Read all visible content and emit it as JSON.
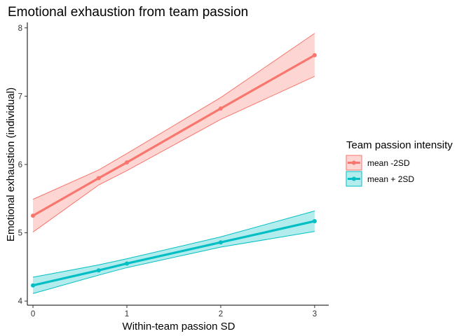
{
  "chart_data": {
    "type": "line",
    "title": "Emotional exhaustion from team passion",
    "xlabel": "Within-team passion SD",
    "ylabel": "Emotional exhaustion (individual)",
    "xlim": [
      -0.06,
      3.15
    ],
    "ylim": [
      3.94,
      8.08
    ],
    "xticks": [
      0,
      1,
      2,
      3
    ],
    "yticks": [
      4,
      5,
      6,
      7,
      8
    ],
    "grid": false,
    "legend": {
      "title": "Team passion intensity",
      "placement": "right"
    },
    "series": [
      {
        "name": "mean -2SD",
        "color": "#F8766D",
        "x": [
          0,
          0.7,
          1,
          2,
          3
        ],
        "y": [
          5.25,
          5.8,
          6.03,
          6.82,
          7.6
        ],
        "lower": [
          5.01,
          5.7,
          5.91,
          6.66,
          7.29
        ],
        "upper": [
          5.49,
          5.92,
          6.16,
          6.98,
          7.92
        ]
      },
      {
        "name": "mean + 2SD",
        "color": "#00BFC4",
        "x": [
          0,
          0.7,
          1,
          2,
          3
        ],
        "y": [
          4.23,
          4.45,
          4.55,
          4.86,
          5.17
        ],
        "lower": [
          4.11,
          4.38,
          4.49,
          4.79,
          5.02
        ],
        "upper": [
          4.35,
          4.53,
          4.62,
          4.94,
          5.32
        ]
      }
    ]
  }
}
